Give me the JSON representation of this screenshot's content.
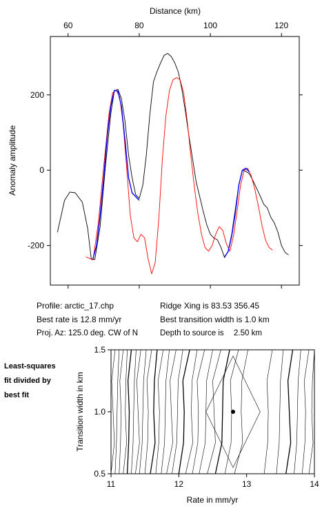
{
  "chart_data": [
    {
      "type": "line",
      "top_xlabel": "Distance (km)",
      "ylabel": "Anomaly amplitude",
      "xlim": [
        55,
        125
      ],
      "ylim": [
        -305,
        355
      ],
      "xticks": [
        60,
        80,
        100,
        120
      ],
      "yticks": [
        -200,
        0,
        200
      ],
      "series": [
        {
          "color": "#000000",
          "x": [
            57,
            59,
            60.5,
            62,
            64,
            65.5,
            66.5,
            67.5,
            69,
            70.5,
            72,
            73,
            74,
            75,
            76,
            77,
            78,
            79,
            80,
            81,
            82,
            83,
            84,
            85,
            86,
            87,
            88,
            89,
            90,
            91,
            92,
            93,
            94,
            95,
            96,
            97,
            98,
            99,
            100,
            101,
            102,
            103,
            104,
            105,
            106,
            107,
            108,
            109,
            110,
            111,
            112,
            113,
            114,
            115,
            116,
            117,
            118,
            119,
            120,
            121,
            122
          ],
          "y": [
            -165,
            -80,
            -58,
            -60,
            -85,
            -155,
            -235,
            -237,
            -150,
            10,
            150,
            210,
            215,
            190,
            130,
            40,
            -20,
            -65,
            -75,
            -40,
            40,
            150,
            235,
            262,
            285,
            305,
            310,
            302,
            285,
            260,
            215,
            155,
            90,
            30,
            -30,
            -70,
            -110,
            -145,
            -170,
            -180,
            -185,
            -205,
            -232,
            -215,
            -170,
            -105,
            -40,
            0,
            -3,
            -10,
            -28,
            -48,
            -68,
            -90,
            -100,
            -125,
            -140,
            -165,
            -200,
            -218,
            -225
          ]
        },
        {
          "color": "#ff0000",
          "x": [
            65,
            67,
            68.5,
            70,
            71.5,
            72.5,
            73.5,
            74.5,
            75.5,
            76.5,
            77.5,
            78.5,
            79.5,
            80.5,
            81.5,
            82.5,
            83.5,
            84.5,
            85.5,
            86.5,
            87.5,
            88.5,
            89.5,
            90.5,
            91.5,
            92.5,
            93.5,
            94.5,
            95.5,
            96.5,
            97.5,
            98.5,
            99.5,
            100.5,
            101.5,
            102.5,
            103.5,
            104.5,
            105.5,
            106.5,
            107.5,
            108.5,
            109.5,
            110.5,
            111.5,
            112.5,
            113.5,
            114.5,
            115.5,
            116.5,
            117.5
          ],
          "y": [
            -230,
            -238,
            -140,
            10,
            150,
            205,
            213,
            195,
            120,
            0,
            -120,
            -180,
            -190,
            -170,
            -180,
            -235,
            -275,
            -245,
            -130,
            30,
            145,
            212,
            240,
            246,
            240,
            205,
            130,
            40,
            -45,
            -115,
            -170,
            -205,
            -215,
            -200,
            -170,
            -150,
            -160,
            -195,
            -215,
            -175,
            -110,
            -40,
            0,
            5,
            -15,
            -50,
            -95,
            -145,
            -185,
            -205,
            -212
          ]
        },
        {
          "color": "#0000ff",
          "x": [
            67,
            68,
            69,
            70,
            71,
            72,
            73,
            74,
            75,
            76,
            77,
            78,
            79,
            80
          ],
          "y": [
            -235,
            -200,
            -120,
            -20,
            90,
            170,
            212,
            210,
            170,
            80,
            -20,
            -60,
            -70,
            -80
          ]
        },
        {
          "color": "#0000ff",
          "x": [
            104,
            105,
            106,
            107,
            108,
            109,
            110,
            111
          ],
          "y": [
            -230,
            -216,
            -175,
            -115,
            -40,
            0,
            5,
            -5
          ]
        }
      ]
    },
    {
      "type": "contour",
      "xlabel": "Rate in mm/yr",
      "ylabel": "Transition width in km",
      "xlim": [
        11,
        14
      ],
      "ylim": [
        0.5,
        1.5
      ],
      "xticks": [
        "11",
        "12",
        "13",
        "14"
      ],
      "yticks": [
        "0.5",
        "1.0",
        "1.5"
      ],
      "best_fit": {
        "rate": 12.8,
        "width": 1.0
      },
      "contour_x_bottom": [
        11.0,
        11.06,
        11.12,
        11.18,
        11.24,
        11.3,
        11.36,
        11.42,
        11.5,
        11.58,
        11.66,
        11.74,
        11.82,
        11.9,
        12.0,
        12.1,
        12.2,
        12.3,
        12.42,
        12.54,
        12.68,
        12.82,
        13.26,
        13.44,
        13.58,
        13.7,
        13.82,
        13.92
      ],
      "contour_x_top": [
        11.06,
        11.12,
        11.18,
        11.24,
        11.3,
        11.37,
        11.44,
        11.52,
        11.6,
        11.68,
        11.77,
        11.86,
        11.96,
        12.06,
        12.16,
        12.27,
        12.38,
        12.5,
        12.62,
        12.75,
        12.88,
        13.02,
        13.38,
        13.54,
        13.68,
        13.8,
        13.92,
        14.0
      ],
      "inner_contour": {
        "rate": [
          12.8,
          13.2,
          12.8,
          12.4
        ],
        "width": [
          1.45,
          1.0,
          0.55,
          1.0
        ]
      }
    }
  ],
  "info": {
    "profile": "Profile: arctic_17.chp",
    "best_rate": "Best rate is 12.8 mm/yr",
    "proj_az": "Proj. Az: 125.0 deg. CW of N",
    "ridge_xing": "Ridge Xing is 83.53 356.45",
    "best_width": "Best transition width is 1.0 km",
    "depth": "Depth to source is",
    "depth_value": "2.50 km"
  },
  "side_caption": [
    "Least-squares",
    "fit divided by",
    "best fit"
  ]
}
